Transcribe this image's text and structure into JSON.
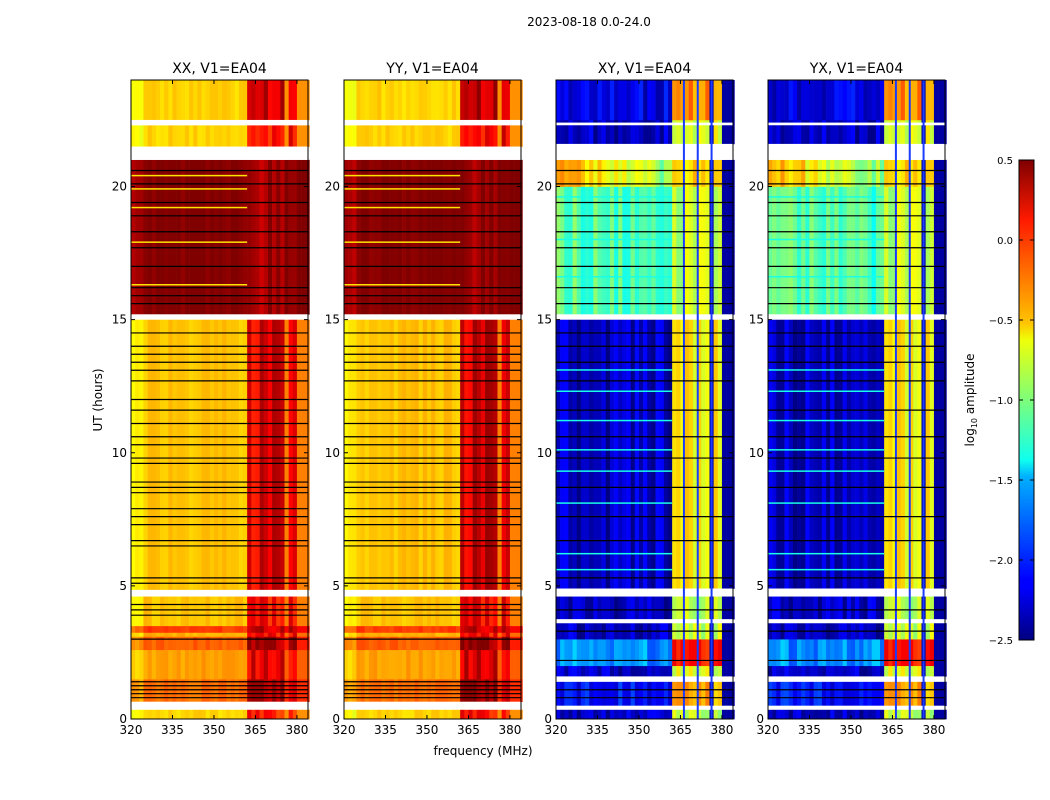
{
  "chart_data": {
    "type": "heatmap",
    "suptitle": "2023-08-18 0.0-24.0",
    "xlabel": "frequency (MHz)",
    "ylabel": "UT (hours)",
    "x_range": [
      320,
      384
    ],
    "y_range": [
      0,
      24
    ],
    "x_ticks": [
      "320",
      "335",
      "350",
      "365",
      "380"
    ],
    "y_ticks": [
      "0",
      "5",
      "10",
      "15",
      "20"
    ],
    "colorbar": {
      "label": "log10 amplitude",
      "label_base": "log",
      "label_sub": "10",
      "label_rest": " amplitude",
      "range": [
        -2.5,
        0.5
      ],
      "colormap": "jet",
      "ticks": [
        "0.5",
        "0.0",
        "−0.5",
        "−1.0",
        "−1.5",
        "−2.0",
        "−2.5"
      ]
    },
    "high_band_columns_mhz": [
      [
        362,
        366
      ],
      [
        366.5,
        371
      ],
      [
        371.5,
        376
      ],
      [
        376.5,
        380.5
      ]
    ],
    "panels": [
      {
        "title": "XX, V1=EA04",
        "kind": "parallel",
        "segments": [
          [
            0,
            0.35,
            -0.5,
            -0.5,
            0.05
          ],
          [
            0.65,
            1.5,
            -0.2,
            -0.2,
            0.3
          ],
          [
            1.5,
            2.6,
            -0.35,
            -0.35,
            0.2
          ],
          [
            2.6,
            3.1,
            -0.15,
            -0.15,
            0.4
          ],
          [
            3.1,
            3.25,
            -0.4,
            -0.4,
            0.1
          ],
          [
            3.25,
            3.5,
            -0.05,
            -0.05,
            0.3
          ],
          [
            3.5,
            4.6,
            -0.45,
            -0.45,
            0.1
          ],
          [
            4.85,
            15,
            -0.45,
            -0.45,
            0.2
          ],
          [
            15.2,
            21,
            0.5,
            0.5,
            0.4
          ],
          [
            21.5,
            22.3,
            -0.5,
            -0.5,
            0.1
          ],
          [
            22.5,
            24,
            -0.5,
            -0.5,
            0.25
          ]
        ],
        "flagged": [
          [
            0.35,
            0.65
          ],
          [
            4.6,
            4.85
          ],
          [
            15,
            15.2
          ],
          [
            21,
            21.5
          ],
          [
            22.3,
            22.5
          ]
        ],
        "black_lines": [
          0.8,
          0.95,
          1.1,
          1.25,
          1.4,
          3.0,
          3.9,
          4.1,
          4.3,
          5.1,
          5.3,
          6.5,
          6.7,
          7.3,
          7.6,
          7.9,
          8.5,
          8.7,
          8.9,
          9.6,
          9.8,
          10.3,
          10.6,
          11.1,
          11.6,
          12.0,
          12.7,
          13.1,
          13.4,
          13.7,
          14.0,
          14.5,
          15.6,
          15.9,
          16.2,
          17.0,
          17.7,
          18.3,
          18.9,
          19.4,
          20.1,
          20.6
        ],
        "bright_lines": [
          16.3,
          17.9,
          19.2,
          19.9,
          20.4
        ]
      },
      {
        "title": "YY, V1=EA04",
        "kind": "parallel",
        "segments": [
          [
            0,
            0.35,
            -0.5,
            -0.5,
            0.1
          ],
          [
            0.65,
            1.5,
            -0.2,
            -0.2,
            0.35
          ],
          [
            1.5,
            2.6,
            -0.35,
            -0.35,
            0.25
          ],
          [
            2.6,
            3.1,
            -0.15,
            -0.15,
            0.45
          ],
          [
            3.1,
            3.25,
            -0.4,
            -0.4,
            0.1
          ],
          [
            3.25,
            3.5,
            -0.05,
            -0.05,
            0.3
          ],
          [
            3.5,
            4.6,
            -0.45,
            -0.45,
            0.15
          ],
          [
            4.85,
            15,
            -0.45,
            -0.45,
            0.25
          ],
          [
            15.2,
            21,
            0.5,
            0.5,
            0.45
          ],
          [
            21.5,
            22.3,
            -0.5,
            -0.5,
            0.15
          ],
          [
            22.5,
            24,
            -0.5,
            -0.5,
            0.3
          ]
        ],
        "flagged": [
          [
            0.35,
            0.65
          ],
          [
            4.6,
            4.85
          ],
          [
            15,
            15.2
          ],
          [
            21,
            21.5
          ],
          [
            22.3,
            22.5
          ]
        ],
        "black_lines": [
          0.8,
          0.95,
          1.1,
          1.25,
          1.4,
          3.0,
          3.9,
          4.1,
          4.3,
          5.1,
          5.3,
          6.5,
          6.7,
          7.3,
          7.6,
          7.9,
          8.5,
          8.7,
          8.9,
          9.6,
          9.8,
          10.3,
          10.6,
          11.1,
          11.6,
          12.0,
          12.7,
          13.1,
          13.4,
          13.7,
          14.0,
          14.5,
          15.6,
          15.9,
          16.2,
          17.0,
          17.7,
          18.3,
          18.9,
          19.4,
          20.1,
          20.6
        ],
        "bright_lines": [
          16.3,
          17.9,
          19.2,
          19.9,
          20.4
        ]
      },
      {
        "title": "XY, V1=EA04",
        "kind": "cross",
        "segments": [
          [
            0,
            0.35,
            -2.3,
            -2.3,
            -0.8
          ],
          [
            0.5,
            1.4,
            -2.1,
            -2.1,
            -0.4
          ],
          [
            1.6,
            2.0,
            -2.3,
            -2.3,
            -0.7
          ],
          [
            2.0,
            3.0,
            -1.7,
            -1.7,
            0.1
          ],
          [
            3.0,
            3.6,
            -2.3,
            -2.3,
            -0.8
          ],
          [
            3.75,
            4.6,
            -2.3,
            -2.3,
            -0.8
          ],
          [
            4.9,
            15,
            -2.3,
            -2.3,
            -0.6
          ],
          [
            15.2,
            20,
            -1.1,
            -1.2,
            -0.8
          ],
          [
            20,
            21,
            -0.35,
            -1.0,
            -0.5
          ],
          [
            21.6,
            22.5,
            -2.3,
            -2.3,
            -0.7
          ],
          [
            22.5,
            24,
            -2.2,
            -2.2,
            -0.3
          ]
        ],
        "flagged": [
          [
            0.35,
            0.5
          ],
          [
            1.4,
            1.6
          ],
          [
            3.6,
            3.75
          ],
          [
            4.6,
            4.9
          ],
          [
            15,
            15.2
          ],
          [
            21,
            21.6
          ],
          [
            22.3,
            22.4
          ]
        ],
        "black_lines": [
          0.8,
          1.1,
          2.2,
          3.3,
          4.1,
          5.3,
          6.7,
          7.6,
          8.7,
          9.8,
          10.6,
          11.6,
          12.7,
          13.4,
          14.0,
          14.5,
          15.6,
          16.2,
          17.0,
          17.7,
          18.3,
          18.9,
          19.4,
          20.1,
          20.6
        ],
        "bright_lines": [
          5.6,
          6.2,
          8.1,
          9.3,
          10.1,
          11.2,
          12.3,
          13.1,
          16.6,
          18.0,
          19.6
        ]
      },
      {
        "title": "YX, V1=EA04",
        "kind": "cross",
        "segments": [
          [
            0,
            0.35,
            -2.3,
            -2.3,
            -0.8
          ],
          [
            0.5,
            1.4,
            -2.1,
            -2.1,
            -0.4
          ],
          [
            1.6,
            2.0,
            -2.3,
            -2.3,
            -0.7
          ],
          [
            2.0,
            3.0,
            -1.7,
            -1.7,
            0.1
          ],
          [
            3.0,
            3.6,
            -2.3,
            -2.3,
            -0.8
          ],
          [
            3.75,
            4.6,
            -2.3,
            -2.3,
            -0.8
          ],
          [
            4.9,
            15,
            -2.3,
            -2.3,
            -0.6
          ],
          [
            15.2,
            20,
            -1.1,
            -1.2,
            -0.8
          ],
          [
            20,
            21,
            -0.35,
            -1.0,
            -0.5
          ],
          [
            21.6,
            22.5,
            -2.3,
            -2.3,
            -0.7
          ],
          [
            22.5,
            24,
            -2.2,
            -2.2,
            -0.3
          ]
        ],
        "flagged": [
          [
            0.35,
            0.5
          ],
          [
            1.4,
            1.6
          ],
          [
            3.6,
            3.75
          ],
          [
            4.6,
            4.9
          ],
          [
            15,
            15.2
          ],
          [
            21,
            21.6
          ],
          [
            22.3,
            22.4
          ]
        ],
        "black_lines": [
          0.8,
          1.1,
          2.2,
          3.3,
          4.1,
          5.3,
          6.7,
          7.6,
          8.7,
          9.8,
          10.6,
          11.6,
          12.7,
          13.4,
          14.0,
          14.5,
          15.6,
          16.2,
          17.0,
          17.7,
          18.3,
          18.9,
          19.4,
          20.1,
          20.6
        ],
        "bright_lines": [
          5.6,
          6.2,
          8.1,
          9.3,
          10.1,
          11.2,
          12.3,
          13.1,
          16.6,
          18.0,
          19.6
        ]
      }
    ]
  }
}
